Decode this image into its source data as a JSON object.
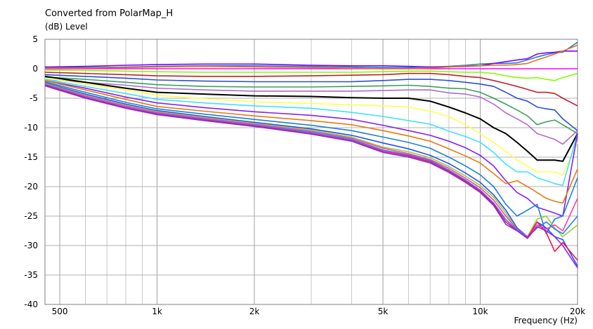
{
  "chart_data": {
    "type": "line",
    "title": "Converted from PolarMap_H",
    "ylabel": "(dB)  Level",
    "xlabel": "Frequency  (Hz)",
    "xscale": "log",
    "xlim": [
      450,
      20000
    ],
    "ylim": [
      -40,
      5
    ],
    "grid": true,
    "x_ticks": [
      {
        "value": 500,
        "label": "500"
      },
      {
        "value": 1000,
        "label": "1k"
      },
      {
        "value": 2000,
        "label": "2k"
      },
      {
        "value": 5000,
        "label": "5k"
      },
      {
        "value": 10000,
        "label": "10k"
      },
      {
        "value": 20000,
        "label": "20k"
      }
    ],
    "y_ticks": [
      5,
      0,
      -5,
      -10,
      -15,
      -20,
      -25,
      -30,
      -35,
      -40
    ],
    "x": [
      450,
      600,
      800,
      1000,
      1400,
      2000,
      3000,
      4000,
      5000,
      6000,
      7000,
      8000,
      9000,
      10000,
      11000,
      12000,
      13000,
      14000,
      15000,
      16000,
      17000,
      18000,
      20000
    ],
    "series": [
      {
        "color": "#ff00ff",
        "values": [
          0,
          0,
          0,
          0,
          0,
          0,
          0,
          0,
          0,
          0,
          0,
          0,
          0,
          0,
          0,
          0,
          0,
          0,
          0,
          0,
          0,
          0,
          0
        ]
      },
      {
        "color": "#1e7fd6",
        "values": [
          0.2,
          0.2,
          0.3,
          0.4,
          0.5,
          0.5,
          0.4,
          0.3,
          0.2,
          0.2,
          0.3,
          0.4,
          0.6,
          0.8,
          0.9,
          0.9,
          1,
          1.5,
          2,
          2.4,
          2.7,
          2.8,
          4.5
        ]
      },
      {
        "color": "#8000ff",
        "values": [
          0.3,
          0.4,
          0.6,
          0.7,
          0.8,
          0.8,
          0.6,
          0.5,
          0.5,
          0.4,
          0.3,
          0.3,
          0.4,
          0.5,
          0.9,
          1.2,
          1.5,
          1.7,
          2.5,
          2.7,
          2.8,
          3,
          3
        ]
      },
      {
        "color": "#e8701e",
        "values": [
          0.1,
          0.1,
          0.2,
          0.3,
          0.4,
          0.3,
          0.2,
          0.1,
          0,
          0,
          0.1,
          0.3,
          0.5,
          0.5,
          0.6,
          0.6,
          0.7,
          0.9,
          1.5,
          2,
          2.5,
          3,
          4
        ]
      },
      {
        "color": "#80ff00",
        "values": [
          -0.2,
          -0.3,
          -0.4,
          -0.5,
          -0.6,
          -0.6,
          -0.6,
          -0.6,
          -0.5,
          -0.4,
          -0.4,
          -0.5,
          -0.6,
          -0.6,
          -0.8,
          -1.2,
          -1.5,
          -1.6,
          -1.5,
          -1.8,
          -2,
          -1.5,
          -0.8
        ]
      },
      {
        "color": "#c0202a",
        "values": [
          -0.6,
          -0.8,
          -1,
          -1.2,
          -1.3,
          -1.3,
          -1.2,
          -1.1,
          -1,
          -0.8,
          -0.8,
          -1,
          -1.3,
          -1.5,
          -2,
          -2.5,
          -3,
          -3.5,
          -4,
          -4,
          -4.2,
          -5,
          -6.3
        ]
      },
      {
        "color": "#2a50d6",
        "values": [
          -1,
          -1.3,
          -1.6,
          -1.9,
          -2.1,
          -2.2,
          -2.2,
          -2.2,
          -2.0,
          -1.8,
          -1.8,
          -2,
          -2.3,
          -2.6,
          -3,
          -4,
          -5,
          -5.5,
          -6.5,
          -6.8,
          -7,
          -8.5,
          -10.5
        ]
      },
      {
        "color": "#3aa05a",
        "values": [
          -1.4,
          -1.8,
          -2.3,
          -2.7,
          -3,
          -3.1,
          -3.1,
          -3.0,
          -2.9,
          -2.8,
          -3,
          -3.3,
          -3.4,
          -4,
          -5,
          -6,
          -7,
          -8,
          -9.5,
          -9,
          -8.7,
          -9.5,
          -11
        ]
      },
      {
        "color": "#b06ad0",
        "values": [
          -1.8,
          -2.3,
          -2.8,
          -3.3,
          -3.6,
          -3.8,
          -3.8,
          -3.8,
          -3.7,
          -3.6,
          -3.6,
          -4.1,
          -4.3,
          -4.8,
          -6,
          -7.5,
          -8.5,
          -9.5,
          -11,
          -11.5,
          -12,
          -12.8,
          -10.5
        ]
      },
      {
        "color": "#000000",
        "values": [
          -1.3,
          -2.3,
          -3.3,
          -4,
          -4.3,
          -4.6,
          -4.7,
          -4.9,
          -5,
          -5,
          -5.5,
          -6.5,
          -7.5,
          -8.5,
          -10,
          -11,
          -12.5,
          -14,
          -15.5,
          -15.5,
          -15.5,
          -15.7,
          -11
        ]
      },
      {
        "color": "#ffff50",
        "values": [
          -1.6,
          -2.6,
          -3.6,
          -4.5,
          -5.1,
          -5.6,
          -5.9,
          -6.1,
          -6.3,
          -6.5,
          -7.2,
          -8.1,
          -9.5,
          -11,
          -12.5,
          -14,
          -15.5,
          -16.5,
          -17.5,
          -17.5,
          -17.5,
          -18,
          -12.5
        ]
      },
      {
        "color": "#40e0ff",
        "values": [
          -1.8,
          -3,
          -4.2,
          -5.2,
          -5.8,
          -6.3,
          -6.7,
          -7.4,
          -8.1,
          -8.8,
          -9.4,
          -10.6,
          -11.5,
          -12.5,
          -14.2,
          -16.2,
          -17.5,
          -17.5,
          -18.5,
          -19,
          -19.5,
          -19.8,
          -11
        ]
      },
      {
        "color": "#8020ff",
        "values": [
          -2,
          -3.3,
          -4.8,
          -5.8,
          -6.6,
          -7.3,
          -7.9,
          -8.6,
          -9.6,
          -10.5,
          -11.3,
          -12.3,
          -13.4,
          -14.7,
          -16.5,
          -19,
          -21,
          -22,
          -23.5,
          -24,
          -24.5,
          -25,
          -11
        ]
      },
      {
        "color": "#e87a10",
        "values": [
          -2,
          -3.6,
          -5.2,
          -6.4,
          -7.2,
          -8,
          -8.8,
          -9.5,
          -10.5,
          -11.4,
          -12.3,
          -13.6,
          -14.8,
          -16,
          -17.8,
          -19.5,
          -19,
          -20,
          -21,
          -22,
          -22.5,
          -22.8,
          -17
        ]
      },
      {
        "color": "#1e7fd6",
        "values": [
          -2.2,
          -4,
          -5.7,
          -6.8,
          -7.7,
          -8.6,
          -9.6,
          -10.5,
          -11.6,
          -12.5,
          -13.5,
          -15,
          -16.5,
          -18,
          -20,
          -23,
          -25,
          -24,
          -23,
          -28,
          -25.5,
          -25,
          -18.5
        ]
      },
      {
        "color": "#2050ff",
        "values": [
          -2.4,
          -4.3,
          -6,
          -7.1,
          -8.1,
          -9.1,
          -10.2,
          -11.3,
          -12.6,
          -13.6,
          -14.7,
          -16.1,
          -17.7,
          -19.3,
          -21.4,
          -24,
          -27,
          -28.5,
          -26,
          -27,
          -28.5,
          -29,
          -33.5
        ]
      },
      {
        "color": "#9acd32",
        "values": [
          -2.5,
          -4.5,
          -6.2,
          -7.3,
          -8.3,
          -9.3,
          -10.4,
          -11.6,
          -13.3,
          -14.1,
          -15.1,
          -16.6,
          -18.2,
          -19.8,
          -21.8,
          -24.5,
          -27.3,
          -28.5,
          -25.5,
          -25,
          -27,
          -28.5,
          -26.5
        ]
      },
      {
        "color": "#ff40a0",
        "values": [
          -2.6,
          -4.6,
          -6.3,
          -7.4,
          -8.4,
          -9.4,
          -10.6,
          -11.8,
          -13.5,
          -14.4,
          -15.4,
          -16.9,
          -18.6,
          -20.2,
          -22.3,
          -25,
          -27.3,
          -28.5,
          -26.5,
          -27.2,
          -26.5,
          -27.5,
          -22
        ]
      },
      {
        "color": "#2080ff",
        "values": [
          -2.7,
          -4.8,
          -6.5,
          -7.6,
          -8.6,
          -9.6,
          -10.8,
          -12,
          -13.8,
          -14.6,
          -15.6,
          -17.2,
          -18.9,
          -20.6,
          -22.8,
          -25.6,
          -27.4,
          -28.6,
          -27,
          -26,
          -27.2,
          -28,
          -25
        ]
      },
      {
        "color": "#ff1050",
        "values": [
          -2.8,
          -4.9,
          -6.6,
          -7.7,
          -8.7,
          -9.7,
          -11,
          -12.2,
          -14,
          -14.8,
          -15.8,
          -17.4,
          -19.1,
          -20.8,
          -23,
          -26,
          -27.5,
          -28.7,
          -26,
          -27.8,
          -31,
          -29.5,
          -32.5
        ]
      },
      {
        "color": "#8a2be2",
        "values": [
          -2.9,
          -5,
          -6.7,
          -7.8,
          -8.8,
          -9.8,
          -11.1,
          -12.3,
          -14.2,
          -15,
          -16,
          -17.6,
          -19.3,
          -21,
          -23.2,
          -26.4,
          -27.5,
          -28.8,
          -26.8,
          -27.5,
          -28.5,
          -30,
          -33.8
        ]
      }
    ]
  }
}
